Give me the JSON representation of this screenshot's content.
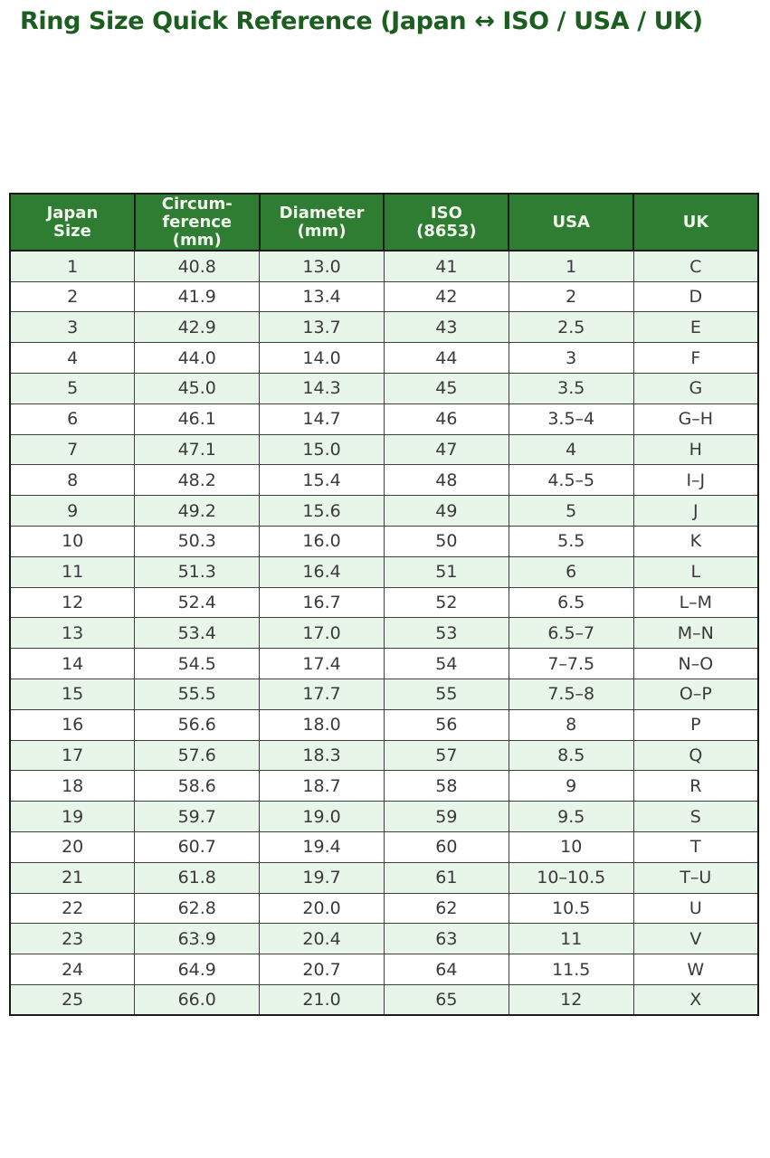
{
  "page": {
    "title": "Ring Size Quick Reference (Japan ↔ ISO / USA / UK)"
  },
  "colors": {
    "title_text": "#1b5e20",
    "header_bg": "#2e7d32",
    "header_text": "#f2f7ee",
    "row_alt_bg": "#e8f5e9",
    "row_bg": "#ffffff",
    "cell_text": "#3a3a3a",
    "border_dark": "#1a1a1a",
    "border_cell": "#3f3f3f"
  },
  "chart_data": {
    "type": "table",
    "title": "Ring Size Quick Reference (Japan ↔ ISO / USA / UK)",
    "columns": [
      "Japan\nSize",
      "Circum-\nference\n(mm)",
      "Diameter\n(mm)",
      "ISO\n(8653)",
      "USA",
      "UK"
    ],
    "rows": [
      [
        "1",
        "40.8",
        "13.0",
        "41",
        "1",
        "C"
      ],
      [
        "2",
        "41.9",
        "13.4",
        "42",
        "2",
        "D"
      ],
      [
        "3",
        "42.9",
        "13.7",
        "43",
        "2.5",
        "E"
      ],
      [
        "4",
        "44.0",
        "14.0",
        "44",
        "3",
        "F"
      ],
      [
        "5",
        "45.0",
        "14.3",
        "45",
        "3.5",
        "G"
      ],
      [
        "6",
        "46.1",
        "14.7",
        "46",
        "3.5–4",
        "G–H"
      ],
      [
        "7",
        "47.1",
        "15.0",
        "47",
        "4",
        "H"
      ],
      [
        "8",
        "48.2",
        "15.4",
        "48",
        "4.5–5",
        "I–J"
      ],
      [
        "9",
        "49.2",
        "15.6",
        "49",
        "5",
        "J"
      ],
      [
        "10",
        "50.3",
        "16.0",
        "50",
        "5.5",
        "K"
      ],
      [
        "11",
        "51.3",
        "16.4",
        "51",
        "6",
        "L"
      ],
      [
        "12",
        "52.4",
        "16.7",
        "52",
        "6.5",
        "L–M"
      ],
      [
        "13",
        "53.4",
        "17.0",
        "53",
        "6.5–7",
        "M–N"
      ],
      [
        "14",
        "54.5",
        "17.4",
        "54",
        "7–7.5",
        "N–O"
      ],
      [
        "15",
        "55.5",
        "17.7",
        "55",
        "7.5–8",
        "O–P"
      ],
      [
        "16",
        "56.6",
        "18.0",
        "56",
        "8",
        "P"
      ],
      [
        "17",
        "57.6",
        "18.3",
        "57",
        "8.5",
        "Q"
      ],
      [
        "18",
        "58.6",
        "18.7",
        "58",
        "9",
        "R"
      ],
      [
        "19",
        "59.7",
        "19.0",
        "59",
        "9.5",
        "S"
      ],
      [
        "20",
        "60.7",
        "19.4",
        "60",
        "10",
        "T"
      ],
      [
        "21",
        "61.8",
        "19.7",
        "61",
        "10–10.5",
        "T–U"
      ],
      [
        "22",
        "62.8",
        "20.0",
        "62",
        "10.5",
        "U"
      ],
      [
        "23",
        "63.9",
        "20.4",
        "63",
        "11",
        "V"
      ],
      [
        "24",
        "64.9",
        "20.7",
        "64",
        "11.5",
        "W"
      ],
      [
        "25",
        "66.0",
        "21.0",
        "65",
        "12",
        "X"
      ]
    ]
  }
}
